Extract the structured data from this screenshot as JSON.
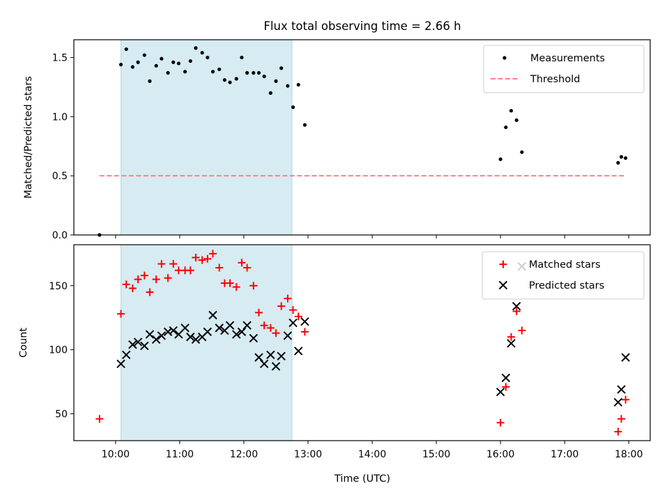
{
  "chart_data": [
    {
      "type": "scatter",
      "title": "Flux total observing time = 2.66 h",
      "xlabel": "",
      "ylabel": "Matched/Predicted stars",
      "xlim": [
        "09:21",
        "18:20"
      ],
      "ylim": [
        0,
        1.65
      ],
      "x_ticks": [
        "10:00",
        "11:00",
        "12:00",
        "13:00",
        "14:00",
        "15:00",
        "16:00",
        "17:00",
        "18:00"
      ],
      "y_ticks": [
        0.0,
        0.5,
        1.0,
        1.5
      ],
      "y_tick_labels": [
        "0.0",
        "0.5",
        "1.0",
        "1.5"
      ],
      "shaded_span": {
        "start": "10:05",
        "end": "12:45",
        "color": "#add8e6"
      },
      "legend_position": "upper right",
      "series": [
        {
          "name": "Measurements",
          "marker": "dot",
          "color": "#000000",
          "points": [
            [
              "09:45",
              0.0
            ],
            [
              "10:05",
              1.44
            ],
            [
              "10:10",
              1.57
            ],
            [
              "10:16",
              1.42
            ],
            [
              "10:21",
              1.46
            ],
            [
              "10:27",
              1.52
            ],
            [
              "10:32",
              1.3
            ],
            [
              "10:38",
              1.43
            ],
            [
              "10:43",
              1.49
            ],
            [
              "10:49",
              1.37
            ],
            [
              "10:54",
              1.46
            ],
            [
              "10:59",
              1.45
            ],
            [
              "11:05",
              1.38
            ],
            [
              "11:10",
              1.47
            ],
            [
              "11:15",
              1.58
            ],
            [
              "11:21",
              1.54
            ],
            [
              "11:26",
              1.5
            ],
            [
              "11:31",
              1.38
            ],
            [
              "11:37",
              1.4
            ],
            [
              "11:42",
              1.31
            ],
            [
              "11:47",
              1.29
            ],
            [
              "11:53",
              1.32
            ],
            [
              "11:58",
              1.5
            ],
            [
              "12:03",
              1.37
            ],
            [
              "12:09",
              1.37
            ],
            [
              "12:14",
              1.37
            ],
            [
              "12:19",
              1.34
            ],
            [
              "12:25",
              1.2
            ],
            [
              "12:30",
              1.3
            ],
            [
              "12:35",
              1.41
            ],
            [
              "12:41",
              1.26
            ],
            [
              "12:46",
              1.08
            ],
            [
              "12:51",
              1.27
            ],
            [
              "12:57",
              0.93
            ],
            [
              "16:00",
              0.64
            ],
            [
              "16:05",
              0.91
            ],
            [
              "16:10",
              1.05
            ],
            [
              "16:15",
              0.97
            ],
            [
              "16:20",
              0.7
            ],
            [
              "17:50",
              0.61
            ],
            [
              "17:53",
              0.66
            ],
            [
              "17:57",
              0.65
            ]
          ]
        },
        {
          "name": "Threshold",
          "marker": "dashed-line",
          "color": "#ff7f7f",
          "points": [
            [
              "09:45",
              0.5
            ],
            [
              "17:57",
              0.5
            ]
          ]
        }
      ]
    },
    {
      "type": "scatter",
      "title": "",
      "xlabel": "Time (UTC)",
      "ylabel": "Count",
      "xlim": [
        "09:21",
        "18:20"
      ],
      "ylim": [
        29,
        182
      ],
      "x_ticks": [
        "10:00",
        "11:00",
        "12:00",
        "13:00",
        "14:00",
        "15:00",
        "16:00",
        "17:00",
        "18:00"
      ],
      "y_ticks": [
        50,
        100,
        150
      ],
      "y_tick_labels": [
        "50",
        "100",
        "150"
      ],
      "shaded_span": {
        "start": "10:05",
        "end": "12:45",
        "color": "#add8e6"
      },
      "legend_position": "upper right",
      "series": [
        {
          "name": "Matched stars",
          "marker": "plus",
          "color": "#ff0000",
          "points": [
            [
              "09:45",
              46
            ],
            [
              "10:05",
              128
            ],
            [
              "10:10",
              151
            ],
            [
              "10:16",
              148
            ],
            [
              "10:21",
              155
            ],
            [
              "10:27",
              158
            ],
            [
              "10:32",
              145
            ],
            [
              "10:38",
              155
            ],
            [
              "10:43",
              167
            ],
            [
              "10:49",
              156
            ],
            [
              "10:54",
              167
            ],
            [
              "10:59",
              162
            ],
            [
              "11:05",
              162
            ],
            [
              "11:10",
              162
            ],
            [
              "11:15",
              172
            ],
            [
              "11:21",
              170
            ],
            [
              "11:26",
              171
            ],
            [
              "11:31",
              175
            ],
            [
              "11:37",
              164
            ],
            [
              "11:42",
              152
            ],
            [
              "11:47",
              152
            ],
            [
              "11:53",
              149
            ],
            [
              "11:58",
              168
            ],
            [
              "12:03",
              164
            ],
            [
              "12:09",
              150
            ],
            [
              "12:14",
              129
            ],
            [
              "12:19",
              119
            ],
            [
              "12:25",
              117
            ],
            [
              "12:30",
              113
            ],
            [
              "12:35",
              134
            ],
            [
              "12:41",
              140
            ],
            [
              "12:46",
              131
            ],
            [
              "12:51",
              126
            ],
            [
              "12:57",
              114
            ],
            [
              "16:00",
              43
            ],
            [
              "16:05",
              71
            ],
            [
              "16:10",
              110
            ],
            [
              "16:15",
              130
            ],
            [
              "16:20",
              115
            ],
            [
              "17:50",
              36
            ],
            [
              "17:53",
              46
            ],
            [
              "17:57",
              61
            ]
          ]
        },
        {
          "name": "Predicted stars",
          "marker": "x",
          "color": "#000000",
          "points": [
            [
              "10:05",
              89
            ],
            [
              "10:10",
              96
            ],
            [
              "10:16",
              104
            ],
            [
              "10:21",
              106
            ],
            [
              "10:27",
              103
            ],
            [
              "10:32",
              112
            ],
            [
              "10:38",
              108
            ],
            [
              "10:43",
              111
            ],
            [
              "10:49",
              114
            ],
            [
              "10:54",
              115
            ],
            [
              "10:59",
              112
            ],
            [
              "11:05",
              117
            ],
            [
              "11:10",
              110
            ],
            [
              "11:15",
              108
            ],
            [
              "11:21",
              110
            ],
            [
              "11:26",
              114
            ],
            [
              "11:31",
              127
            ],
            [
              "11:37",
              117
            ],
            [
              "11:42",
              115
            ],
            [
              "11:47",
              119
            ],
            [
              "11:53",
              112
            ],
            [
              "11:58",
              114
            ],
            [
              "12:03",
              119
            ],
            [
              "12:09",
              109
            ],
            [
              "12:14",
              94
            ],
            [
              "12:19",
              89
            ],
            [
              "12:25",
              96
            ],
            [
              "12:30",
              87
            ],
            [
              "12:35",
              95
            ],
            [
              "12:41",
              111
            ],
            [
              "12:46",
              121
            ],
            [
              "12:51",
              99
            ],
            [
              "12:57",
              122
            ],
            [
              "16:00",
              67
            ],
            [
              "16:05",
              78
            ],
            [
              "16:10",
              105
            ],
            [
              "16:15",
              134
            ],
            [
              "16:20",
              165
            ],
            [
              "17:50",
              59
            ],
            [
              "17:53",
              69
            ],
            [
              "17:57",
              94
            ]
          ]
        }
      ]
    }
  ]
}
